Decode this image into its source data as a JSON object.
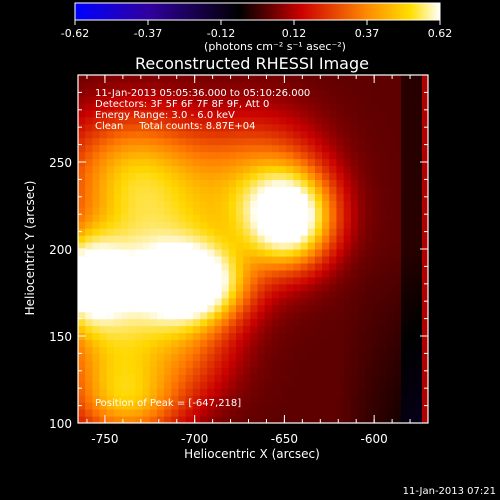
{
  "colorbar": {
    "tick_labels": [
      "-0.62",
      "-0.37",
      "-0.12",
      "0.12",
      "0.37",
      "0.62"
    ],
    "units": "(photons cm⁻² s⁻¹ asec⁻²)"
  },
  "title": "Reconstructed RHESSI Image",
  "info_lines": [
    "11-Jan-2013 05:05:36.000 to 05:10:26.000",
    "Detectors: 3F 5F 6F 7F 8F 9F, Att 0",
    "Energy Range: 3.0 - 6.0 keV",
    "Clean     Total counts: 8.87E+04"
  ],
  "peak_label": "Position of Peak = [-647,218]",
  "footer_timestamp": "11-Jan-2013 07:21",
  "colors": {
    "background": "#000000",
    "axis": "#ffffff"
  },
  "chart_data": {
    "type": "heatmap",
    "title": "Reconstructed RHESSI Image",
    "xlabel": "Heliocentric X (arcsec)",
    "ylabel": "Heliocentric Y (arcsec)",
    "xlim": [
      -765,
      -570
    ],
    "ylim": [
      100,
      300
    ],
    "x_ticks": [
      -750,
      -700,
      -650,
      -600
    ],
    "y_ticks": [
      100,
      150,
      200,
      250
    ],
    "colorbar_range": [
      -0.62,
      0.62
    ],
    "colormap": "hot (blue-black-red-yellow-white)",
    "peak_position": [
      -647,
      218
    ],
    "sources": [
      {
        "x": -647,
        "y": 218,
        "peak": 0.6,
        "sx": 16,
        "sy": 18
      },
      {
        "x": -700,
        "y": 180,
        "peak": 0.56,
        "sx": 18,
        "sy": 15
      },
      {
        "x": -760,
        "y": 182,
        "peak": 0.52,
        "sx": 14,
        "sy": 17
      },
      {
        "x": -730,
        "y": 180,
        "peak": 0.3,
        "sx": 30,
        "sy": 22
      },
      {
        "x": -735,
        "y": 245,
        "peak": 0.3,
        "sx": 28,
        "sy": 25
      },
      {
        "x": -745,
        "y": 135,
        "peak": 0.3,
        "sx": 22,
        "sy": 25
      },
      {
        "x": -665,
        "y": 235,
        "peak": 0.28,
        "sx": 25,
        "sy": 28
      },
      {
        "x": -720,
        "y": 210,
        "peak": 0.24,
        "sx": 30,
        "sy": 30
      },
      {
        "x": -705,
        "y": 140,
        "peak": 0.16,
        "sx": 20,
        "sy": 20
      },
      {
        "x": -735,
        "y": 110,
        "peak": 0.2,
        "sx": 20,
        "sy": 15
      }
    ]
  }
}
